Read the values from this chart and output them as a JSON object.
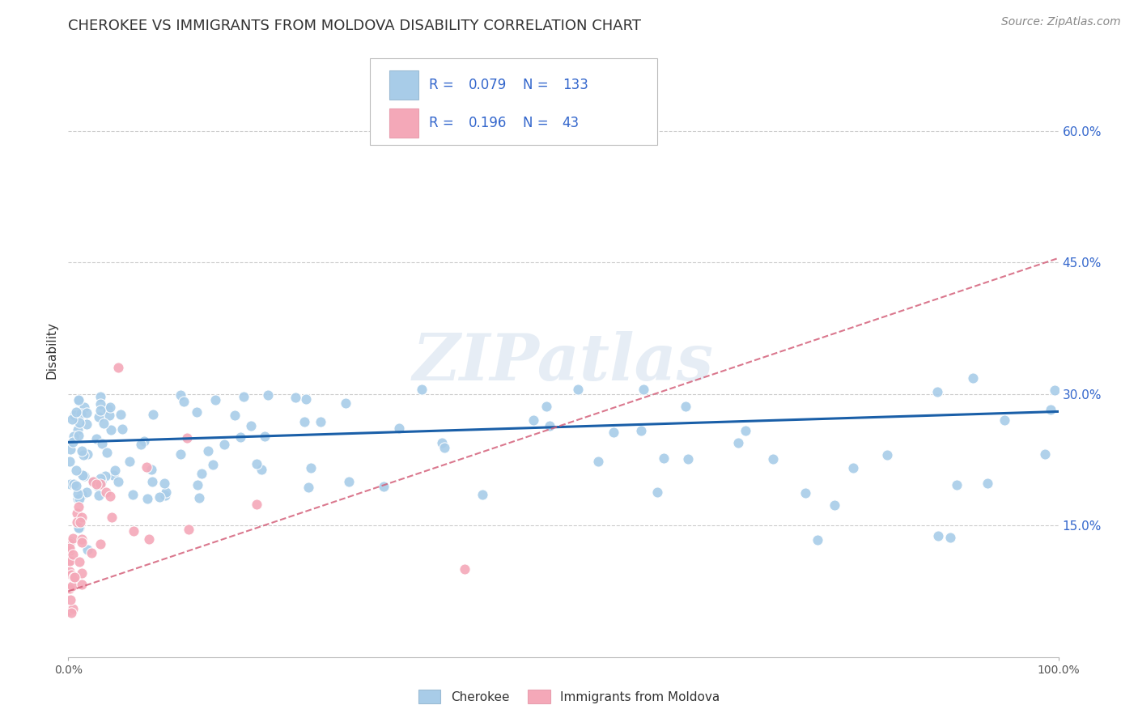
{
  "title": "CHEROKEE VS IMMIGRANTS FROM MOLDOVA DISABILITY CORRELATION CHART",
  "source": "Source: ZipAtlas.com",
  "ylabel": "Disability",
  "watermark": "ZIPatlas",
  "xlim": [
    0,
    1.0
  ],
  "ylim": [
    0,
    0.7
  ],
  "ytick_values": [
    0.15,
    0.3,
    0.45,
    0.6
  ],
  "ytick_labels": [
    "15.0%",
    "30.0%",
    "45.0%",
    "60.0%"
  ],
  "legend1_r": "0.079",
  "legend1_n": "133",
  "legend2_r": "0.196",
  "legend2_n": "43",
  "color_cherokee": "#a8cce8",
  "color_moldova": "#f4a8b8",
  "color_blue_text": "#3366cc",
  "line_cherokee_color": "#1a5fa8",
  "line_moldova_color": "#d4607a",
  "background_color": "#ffffff",
  "grid_color": "#dddddd"
}
